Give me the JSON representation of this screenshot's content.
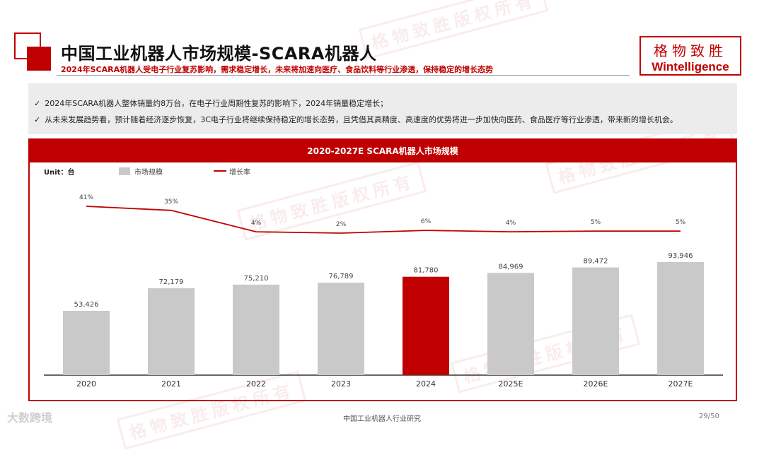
{
  "header": {
    "title": "中国工业机器人市场规模-SCARA机器人",
    "subtitle": "2024年SCARA机器人受电子行业复苏影响，需求稳定增长，未来将加速向医疗、食品饮料等行业渗透，保持稳定的增长态势",
    "logo_cn": "格物致胜",
    "logo_en": "Wintelligence"
  },
  "bullets": [
    "2024年SCARA机器人整体销量约8万台，在电子行业周期性复苏的影响下，2024年销量稳定增长；",
    "从未来发展趋势看，预计随着经济逐步恢复，3C电子行业将继续保持稳定的增长态势，且凭借其高精度、高速度的优势将进一步加快向医药、食品医疗等行业渗透，带来新的增长机会。"
  ],
  "bullet_check": "✓",
  "chart_data": {
    "type": "bar",
    "title": "2020-2027E SCARA机器人市场规模",
    "unit_label": "Unit：台",
    "categories": [
      "2020",
      "2021",
      "2022",
      "2023",
      "2024",
      "2025E",
      "2026E",
      "2027E"
    ],
    "series": [
      {
        "name": "市场规模",
        "type": "bar",
        "values": [
          53426,
          72179,
          75210,
          76789,
          81780,
          84969,
          89472,
          93946
        ],
        "labels": [
          "53,426",
          "72,179",
          "75,210",
          "76,789",
          "81,780",
          "84,969",
          "89,472",
          "93,946"
        ],
        "color": "#c9c9c9",
        "highlight_index": 4,
        "highlight_color": "#c00000"
      },
      {
        "name": "增长率",
        "type": "line",
        "values": [
          41,
          35,
          4,
          2,
          6,
          4,
          5,
          5
        ],
        "labels": [
          "41%",
          "35%",
          "4%",
          "2%",
          "6%",
          "4%",
          "5%",
          "5%"
        ],
        "color": "#c00000"
      }
    ],
    "legend_position": "top-left",
    "grid": false
  },
  "watermark": "格物致胜版权所有",
  "brand": "大数跨境",
  "footer": {
    "center": "中国工业机器人行业研究",
    "page": "29/50"
  }
}
